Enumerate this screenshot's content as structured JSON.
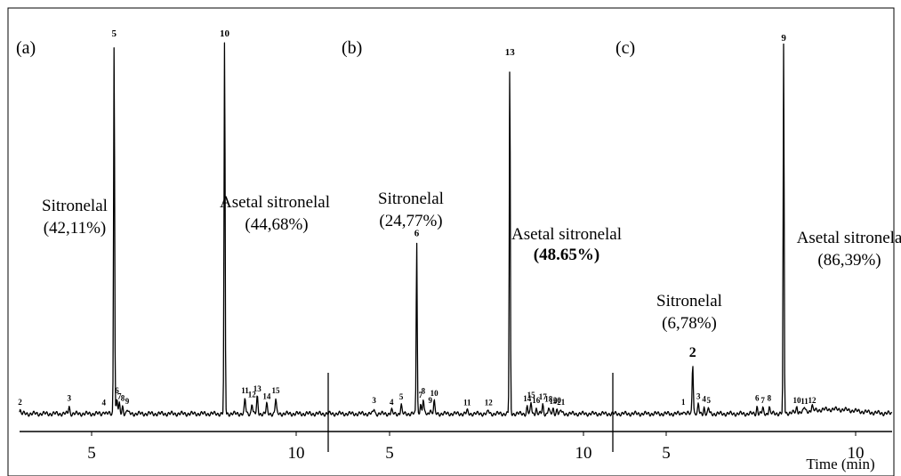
{
  "chart_data": [
    {
      "type": "line",
      "panel": "(a)",
      "xlim": [
        3.0,
        11.0
      ],
      "x_ticks": [
        5,
        10
      ],
      "baseline": 0,
      "peaks": [
        {
          "label": "2",
          "x": 3.25,
          "h": 0.01
        },
        {
          "label": "3",
          "x": 4.45,
          "h": 0.02
        },
        {
          "label": "4",
          "x": 5.3,
          "h": 0.008
        },
        {
          "label": "5",
          "x": 5.55,
          "h": 1.0
        },
        {
          "label": "6",
          "x": 5.62,
          "h": 0.04
        },
        {
          "label": "7",
          "x": 5.68,
          "h": 0.025
        },
        {
          "label": "8",
          "x": 5.76,
          "h": 0.02
        },
        {
          "label": "9",
          "x": 5.87,
          "h": 0.012
        },
        {
          "label": "10",
          "x": 8.25,
          "h": 1.0
        },
        {
          "label": "11",
          "x": 8.75,
          "h": 0.04
        },
        {
          "label": "12",
          "x": 8.92,
          "h": 0.03
        },
        {
          "label": "13",
          "x": 9.05,
          "h": 0.045
        },
        {
          "label": "14",
          "x": 9.28,
          "h": 0.025
        },
        {
          "label": "15",
          "x": 9.5,
          "h": 0.04
        }
      ],
      "annotations": [
        {
          "text": "Sitronelal",
          "peak": "5"
        },
        {
          "text": "(42,11%)",
          "peak": "5"
        },
        {
          "text": "Asetal sitronelal",
          "peak": "10"
        },
        {
          "text": "(44,68%)",
          "peak": "10"
        }
      ]
    },
    {
      "type": "line",
      "panel": "(b)",
      "xlim": [
        3.0,
        11.0
      ],
      "x_ticks": [
        5,
        10
      ],
      "baseline": 0,
      "peaks": [
        {
          "label": "3",
          "x": 4.6,
          "h": 0.015
        },
        {
          "label": "4",
          "x": 5.05,
          "h": 0.01
        },
        {
          "label": "5",
          "x": 5.3,
          "h": 0.025
        },
        {
          "label": "6",
          "x": 5.7,
          "h": 0.48
        },
        {
          "label": "7",
          "x": 5.8,
          "h": 0.03
        },
        {
          "label": "8",
          "x": 5.87,
          "h": 0.04
        },
        {
          "label": "9",
          "x": 6.05,
          "h": 0.015
        },
        {
          "label": "10",
          "x": 6.15,
          "h": 0.035
        },
        {
          "label": "11",
          "x": 7.0,
          "h": 0.008
        },
        {
          "label": "12",
          "x": 7.55,
          "h": 0.008
        },
        {
          "label": "13",
          "x": 8.1,
          "h": 0.98
        },
        {
          "label": "14",
          "x": 8.55,
          "h": 0.02
        },
        {
          "label": "15",
          "x": 8.65,
          "h": 0.03
        },
        {
          "label": "16",
          "x": 8.78,
          "h": 0.015
        },
        {
          "label": "17",
          "x": 8.95,
          "h": 0.025
        },
        {
          "label": "18",
          "x": 9.1,
          "h": 0.018
        },
        {
          "label": "19",
          "x": 9.22,
          "h": 0.012
        },
        {
          "label": "20",
          "x": 9.32,
          "h": 0.015
        },
        {
          "label": "21",
          "x": 9.42,
          "h": 0.01
        }
      ],
      "annotations": [
        {
          "text": "Sitronelal",
          "peak": "6"
        },
        {
          "text": "(24,77%)",
          "peak": "6"
        },
        {
          "text": "Asetal sitronelal",
          "peak": "13"
        },
        {
          "text": "48.65%)",
          "peak": "13"
        }
      ]
    },
    {
      "type": "line",
      "panel": "(c)",
      "xlim": [
        3.0,
        11.0
      ],
      "x_ticks": [
        5,
        10
      ],
      "baseline": 0,
      "peaks": [
        {
          "label": "1",
          "x": 5.45,
          "h": 0.01
        },
        {
          "label": "2",
          "x": 5.7,
          "h": 0.14
        },
        {
          "label": "3",
          "x": 5.85,
          "h": 0.025
        },
        {
          "label": "4",
          "x": 6.0,
          "h": 0.018
        },
        {
          "label": "5",
          "x": 6.12,
          "h": 0.015
        },
        {
          "label": "6",
          "x": 7.4,
          "h": 0.02
        },
        {
          "label": "7",
          "x": 7.55,
          "h": 0.015
        },
        {
          "label": "8",
          "x": 7.72,
          "h": 0.02
        },
        {
          "label": "9",
          "x": 8.1,
          "h": 1.0
        },
        {
          "label": "10",
          "x": 8.45,
          "h": 0.015
        },
        {
          "label": "11",
          "x": 8.65,
          "h": 0.012
        },
        {
          "label": "12",
          "x": 8.85,
          "h": 0.015
        }
      ],
      "annotations": [
        {
          "text": "Sitronelal",
          "peak": "2"
        },
        {
          "text": "(6,78%)",
          "peak": "2"
        },
        {
          "text": "Asetal sitronela",
          "peak": "9"
        },
        {
          "text": "(86,39%)",
          "peak": "9"
        }
      ]
    }
  ],
  "labels": {
    "panel_a": "(a)",
    "panel_b": "(b)",
    "panel_c": "(c)",
    "a_sitro": "Sitronelal",
    "a_sitro_pct": "(42,11%)",
    "a_asetal": "Asetal sitronelal",
    "a_asetal_pct": "(44,68%)",
    "b_sitro": "Sitronelal",
    "b_sitro_pct": "(24,77%)",
    "b_asetal": "Asetal sitronelal",
    "b_asetal_pct": "(48.65%)",
    "c_sitro": "Sitronelal",
    "c_sitro_pct": "(6,78%)",
    "c_asetal": "Asetal sitronela",
    "c_asetal_pct": "(86,39%)",
    "x_axis_title": "Time (min)"
  },
  "colors": {
    "ink": "#000000",
    "background": "#ffffff",
    "frame": "#000000"
  }
}
